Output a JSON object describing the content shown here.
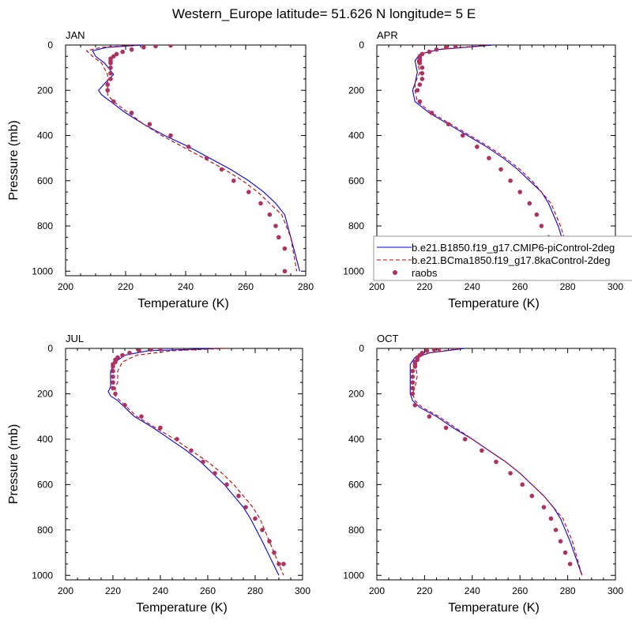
{
  "title": "Western_Europe  latitude= 51.626 N longitude= 5 E",
  "colors": {
    "model_a": "#0000ff",
    "model_b": "#cc0000",
    "raobs": "#b03060"
  },
  "legend": {
    "placement": "inside APR panel, lower area",
    "entries": [
      {
        "label": "b.e21.B1850.f19_g17.CMIP6-piControl-2deg",
        "style": "solid",
        "color": "#0000ff"
      },
      {
        "label": "b.e21.BCma1850.f19_g17.8kaControl-2deg",
        "style": "dashed",
        "color": "#cc0000"
      },
      {
        "label": "raobs",
        "style": "marker",
        "color": "#b03060"
      }
    ]
  },
  "chart_data": [
    {
      "type": "line",
      "panel": "JAN",
      "xlabel": "Temperature (K)",
      "ylabel": "Pressure (mb)",
      "xlim": [
        200,
        280
      ],
      "ylim": [
        1020,
        0
      ],
      "y_reversed": true,
      "xticks": [
        200,
        220,
        240,
        260,
        280
      ],
      "yticks": [
        0,
        200,
        400,
        600,
        800,
        1000
      ],
      "series": [
        {
          "name": "b.e21.B1850.f19_g17.CMIP6-piControl-2deg",
          "style": "solid",
          "x": [
            226,
            214,
            209,
            210,
            213,
            216,
            213,
            211,
            212,
            215,
            220,
            226,
            233,
            241,
            248,
            255,
            261,
            266,
            270,
            273,
            275,
            278
          ],
          "y": [
            0,
            10,
            25,
            50,
            80,
            130,
            170,
            200,
            220,
            250,
            300,
            350,
            400,
            450,
            500,
            550,
            600,
            650,
            700,
            750,
            850,
            1000
          ]
        },
        {
          "name": "b.e21.BCma1850.f19_g17.8kaControl-2deg",
          "style": "dashed",
          "x": [
            224,
            212,
            207,
            209,
            212,
            214,
            214,
            214,
            214,
            216,
            221,
            226,
            232,
            239,
            246,
            253,
            259,
            264,
            268,
            272,
            275,
            277
          ],
          "y": [
            0,
            10,
            25,
            50,
            80,
            130,
            170,
            200,
            220,
            250,
            300,
            350,
            400,
            450,
            500,
            550,
            600,
            650,
            700,
            750,
            850,
            1000
          ]
        },
        {
          "name": "raobs",
          "style": "marker",
          "x": [
            235,
            235,
            230,
            226,
            222,
            219,
            217,
            216,
            215,
            215,
            215,
            215,
            215,
            215,
            214,
            214,
            216,
            222,
            228,
            235,
            241,
            247,
            252,
            256,
            261,
            265,
            268,
            270,
            271,
            273,
            273
          ],
          "y": [
            0,
            2,
            5,
            10,
            20,
            30,
            40,
            50,
            60,
            70,
            80,
            100,
            125,
            150,
            175,
            200,
            250,
            300,
            350,
            400,
            450,
            500,
            550,
            600,
            650,
            700,
            750,
            800,
            850,
            900,
            1000
          ]
        }
      ]
    },
    {
      "type": "line",
      "panel": "APR",
      "xlabel": "Temperature (K)",
      "ylabel": "",
      "xlim": [
        200,
        300
      ],
      "ylim": [
        1020,
        0
      ],
      "y_reversed": true,
      "xticks": [
        200,
        220,
        240,
        260,
        280,
        300
      ],
      "yticks": [
        0,
        200,
        400,
        600,
        800,
        1000
      ],
      "series": [
        {
          "name": "b.e21.B1850.f19_g17.CMIP6-piControl-2deg",
          "style": "solid",
          "x": [
            249,
            226,
            218,
            216,
            217,
            216,
            215,
            216,
            222,
            230,
            238,
            246,
            253,
            259,
            264,
            269,
            272,
            276,
            279,
            281
          ],
          "y": [
            0,
            20,
            40,
            70,
            120,
            170,
            200,
            250,
            300,
            350,
            400,
            450,
            500,
            550,
            600,
            650,
            700,
            800,
            900,
            1000
          ]
        },
        {
          "name": "b.e21.BCma1850.f19_g17.8kaControl-2deg",
          "style": "dashed",
          "x": [
            247,
            225,
            218,
            217,
            218,
            216,
            216,
            217,
            223,
            231,
            239,
            247,
            254,
            260,
            265,
            269,
            273,
            277,
            280,
            282
          ],
          "y": [
            0,
            20,
            40,
            70,
            120,
            170,
            200,
            250,
            300,
            350,
            400,
            450,
            500,
            550,
            600,
            650,
            700,
            800,
            900,
            1000
          ]
        },
        {
          "name": "raobs",
          "style": "marker",
          "x": [
            233,
            229,
            225,
            222,
            219,
            218,
            218,
            218,
            218,
            219,
            219,
            219,
            218,
            217,
            218,
            223,
            230,
            236,
            242,
            247,
            252,
            256,
            260,
            264,
            267,
            269,
            272,
            274,
            276,
            278,
            280
          ],
          "y": [
            5,
            10,
            20,
            30,
            40,
            50,
            60,
            70,
            80,
            100,
            125,
            150,
            175,
            200,
            250,
            300,
            350,
            400,
            450,
            500,
            550,
            600,
            650,
            700,
            750,
            800,
            850,
            900,
            950,
            1000,
            1000
          ]
        }
      ]
    },
    {
      "type": "line",
      "panel": "JUL",
      "xlabel": "Temperature (K)",
      "ylabel": "Pressure (mb)",
      "xlim": [
        200,
        300
      ],
      "ylim": [
        1020,
        0
      ],
      "y_reversed": true,
      "xticks": [
        200,
        220,
        240,
        260,
        280,
        300
      ],
      "yticks": [
        0,
        200,
        400,
        600,
        800,
        1000
      ],
      "series": [
        {
          "name": "b.e21.B1850.f19_g17.CMIP6-piControl-2deg",
          "style": "solid",
          "x": [
            265,
            235,
            225,
            221,
            219,
            219,
            219,
            218,
            219,
            222,
            229,
            237,
            244,
            251,
            257,
            262,
            267,
            271,
            275,
            278,
            283,
            290
          ],
          "y": [
            0,
            10,
            30,
            60,
            100,
            150,
            170,
            190,
            210,
            230,
            300,
            350,
            400,
            450,
            500,
            550,
            600,
            650,
            700,
            750,
            850,
            1000
          ]
        },
        {
          "name": "b.e21.BCma1850.f19_g17.8kaControl-2deg",
          "style": "dashed",
          "x": [
            268,
            245,
            230,
            224,
            222,
            222,
            221,
            221,
            221,
            223,
            230,
            238,
            246,
            253,
            260,
            266,
            271,
            275,
            279,
            282,
            286,
            292
          ],
          "y": [
            0,
            10,
            30,
            60,
            100,
            150,
            170,
            190,
            210,
            230,
            300,
            350,
            400,
            450,
            500,
            550,
            600,
            650,
            700,
            750,
            850,
            1000
          ]
        },
        {
          "name": "raobs",
          "style": "marker",
          "x": [
            240,
            236,
            231,
            227,
            224,
            222,
            221,
            221,
            220,
            220,
            220,
            220,
            220,
            220,
            221,
            225,
            232,
            240,
            247,
            253,
            258,
            263,
            268,
            273,
            276,
            280,
            283,
            286,
            288,
            290,
            292
          ],
          "y": [
            2,
            5,
            10,
            20,
            30,
            40,
            50,
            60,
            70,
            80,
            100,
            125,
            150,
            175,
            200,
            250,
            300,
            350,
            400,
            450,
            500,
            550,
            600,
            650,
            700,
            750,
            800,
            850,
            900,
            950,
            950
          ]
        }
      ]
    },
    {
      "type": "line",
      "panel": "OCT",
      "xlabel": "Temperature (K)",
      "ylabel": "",
      "xlim": [
        200,
        300
      ],
      "ylim": [
        1020,
        0
      ],
      "y_reversed": true,
      "xticks": [
        200,
        220,
        240,
        260,
        280,
        300
      ],
      "yticks": [
        0,
        200,
        400,
        600,
        800,
        1000
      ],
      "series": [
        {
          "name": "b.e21.B1850.f19_g17.CMIP6-piControl-2deg",
          "style": "solid",
          "x": [
            237,
            222,
            216,
            214,
            214,
            214,
            214,
            215,
            218,
            225,
            232,
            240,
            247,
            254,
            260,
            265,
            270,
            274,
            277,
            281,
            286
          ],
          "y": [
            0,
            20,
            40,
            70,
            120,
            170,
            200,
            230,
            260,
            300,
            350,
            400,
            450,
            500,
            550,
            600,
            650,
            700,
            750,
            850,
            1000
          ]
        },
        {
          "name": "b.e21.BCma1850.f19_g17.8kaControl-2deg",
          "style": "dashed",
          "x": [
            235,
            222,
            217,
            216,
            217,
            216,
            215,
            216,
            219,
            226,
            233,
            240,
            247,
            254,
            260,
            265,
            270,
            274,
            278,
            282,
            286
          ],
          "y": [
            0,
            20,
            40,
            70,
            120,
            170,
            200,
            230,
            260,
            300,
            350,
            400,
            450,
            500,
            550,
            600,
            650,
            700,
            750,
            850,
            1000
          ]
        },
        {
          "name": "raobs",
          "style": "marker",
          "x": [
            226,
            224,
            221,
            219,
            218,
            217,
            217,
            216,
            216,
            216,
            215,
            215,
            215,
            215,
            215,
            216,
            222,
            229,
            237,
            244,
            250,
            256,
            261,
            265,
            270,
            273,
            275,
            277,
            279,
            281
          ],
          "y": [
            2,
            5,
            10,
            20,
            30,
            40,
            50,
            60,
            70,
            80,
            100,
            125,
            150,
            175,
            200,
            250,
            300,
            350,
            400,
            450,
            500,
            550,
            600,
            650,
            700,
            750,
            800,
            850,
            900,
            950
          ]
        }
      ]
    }
  ]
}
